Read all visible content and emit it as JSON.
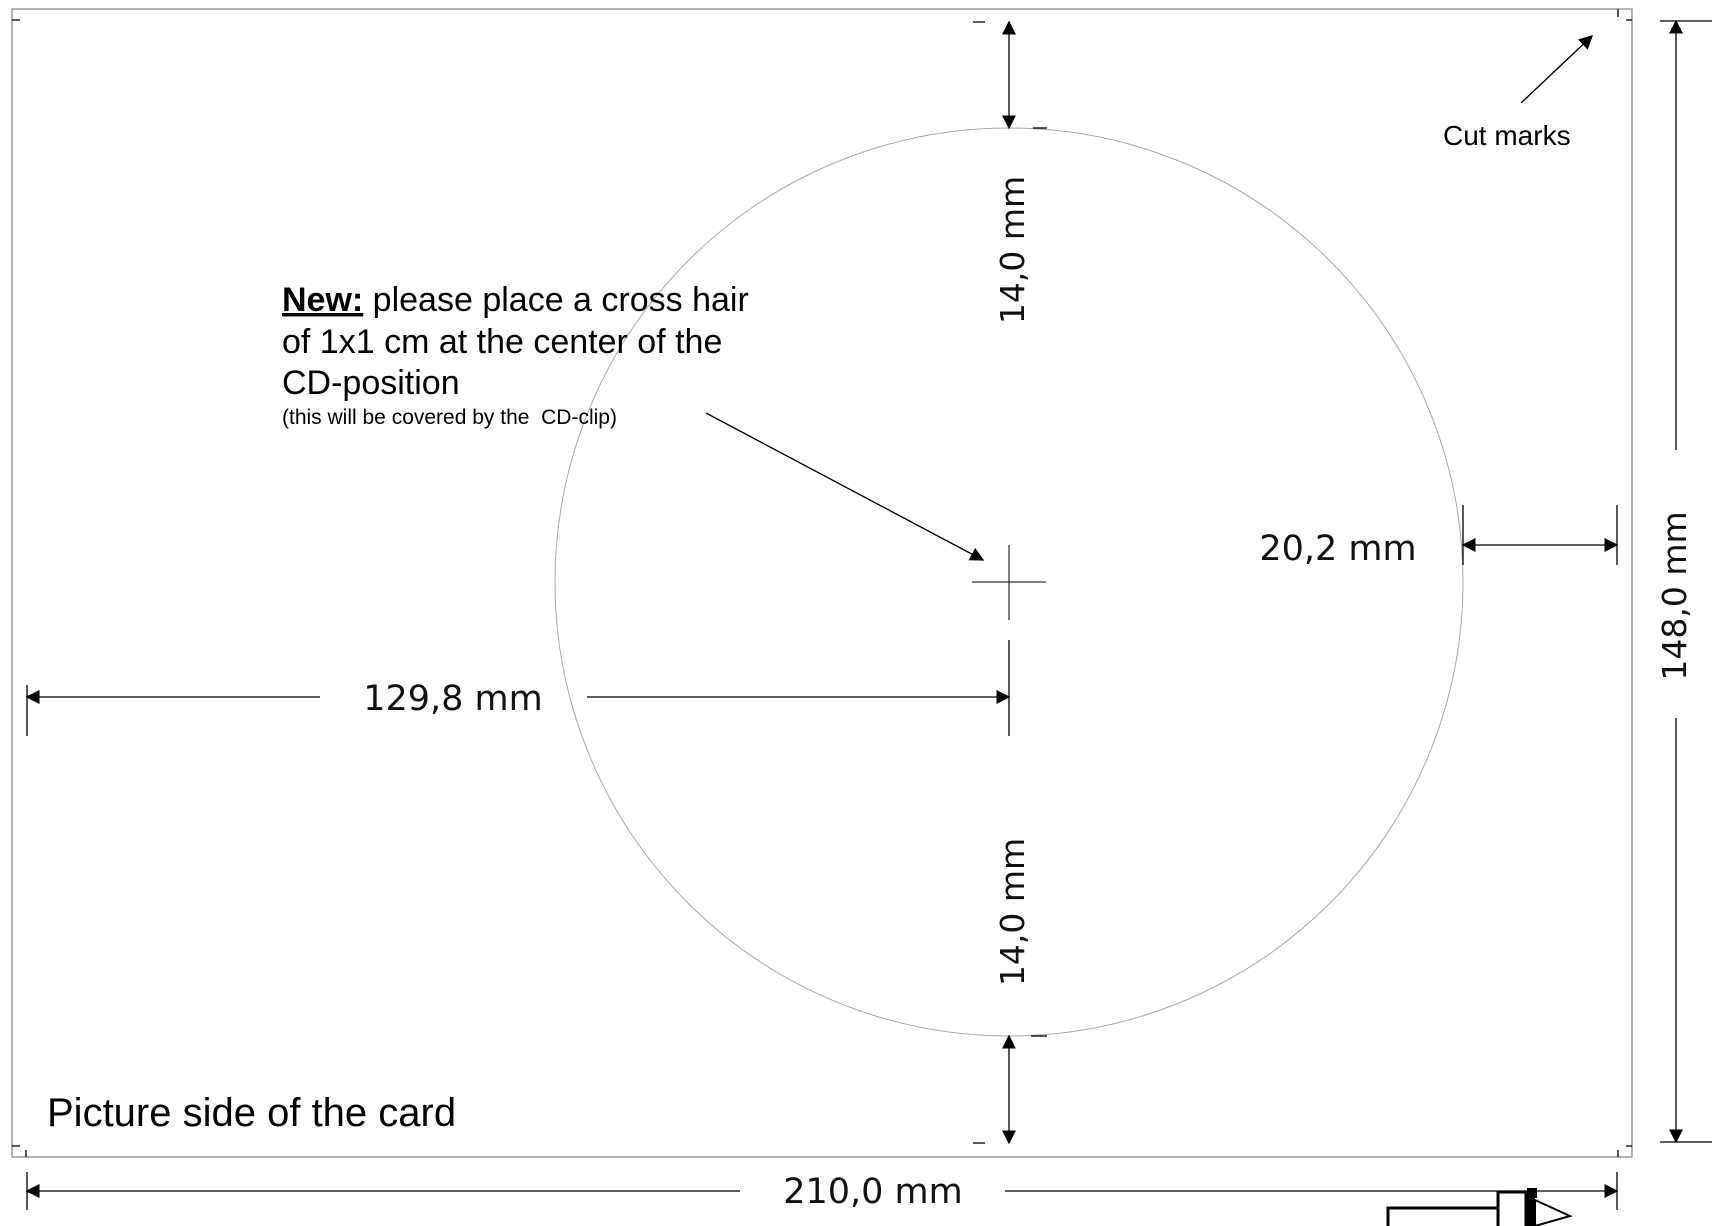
{
  "labels": {
    "cut_marks": "Cut marks",
    "note_bold": "New:",
    "note_line1_rest": " please place a cross hair",
    "note_line2": "of 1x1 cm at the center of the",
    "note_line3": "CD-position",
    "note_small": "(this will be covered by the  CD-clip)",
    "picture_side": "Picture side of the card"
  },
  "dimensions": {
    "top_gap": "14,0 mm",
    "bottom_gap": "14,0 mm",
    "right_gap": "20,2 mm",
    "center_from_left": "129,8 mm",
    "card_height": "148,0 mm",
    "card_width": "210,0 mm"
  },
  "colors": {
    "line": "#000000",
    "card_border": "#8a8a8a",
    "circle": "#a8a8a8"
  }
}
